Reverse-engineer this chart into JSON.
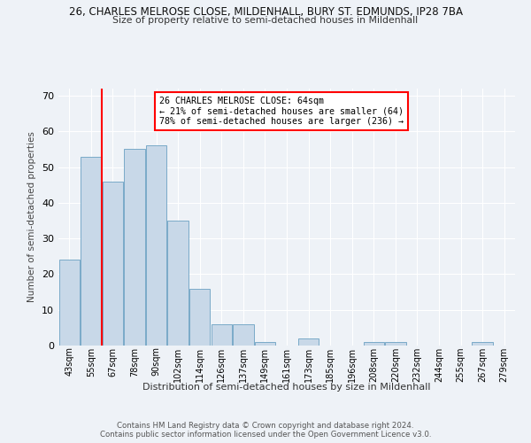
{
  "title": "26, CHARLES MELROSE CLOSE, MILDENHALL, BURY ST. EDMUNDS, IP28 7BA",
  "subtitle": "Size of property relative to semi-detached houses in Mildenhall",
  "xlabel": "Distribution of semi-detached houses by size in Mildenhall",
  "ylabel": "Number of semi-detached properties",
  "bar_labels": [
    "43sqm",
    "55sqm",
    "67sqm",
    "78sqm",
    "90sqm",
    "102sqm",
    "114sqm",
    "126sqm",
    "137sqm",
    "149sqm",
    "161sqm",
    "173sqm",
    "185sqm",
    "196sqm",
    "208sqm",
    "220sqm",
    "232sqm",
    "244sqm",
    "255sqm",
    "267sqm",
    "279sqm"
  ],
  "bar_values": [
    24,
    53,
    46,
    55,
    56,
    35,
    16,
    6,
    6,
    1,
    0,
    2,
    0,
    0,
    1,
    1,
    0,
    0,
    0,
    1,
    0
  ],
  "bar_color": "#c8d8e8",
  "bar_edge_color": "#7aaac8",
  "red_line_x": 1.5,
  "annotation_text": "26 CHARLES MELROSE CLOSE: 64sqm\n← 21% of semi-detached houses are smaller (64)\n78% of semi-detached houses are larger (236) →",
  "ylim": [
    0,
    72
  ],
  "yticks": [
    0,
    10,
    20,
    30,
    40,
    50,
    60,
    70
  ],
  "background_color": "#eef2f7",
  "grid_color": "#ffffff",
  "footer_text": "Contains HM Land Registry data © Crown copyright and database right 2024.\nContains public sector information licensed under the Open Government Licence v3.0."
}
